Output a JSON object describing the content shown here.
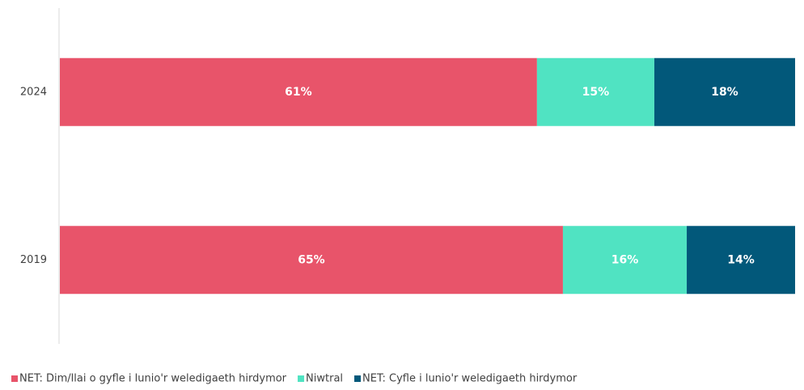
{
  "chart_data": {
    "type": "bar",
    "orientation": "horizontal",
    "stacking": "percent",
    "categories": [
      "2024",
      "2019"
    ],
    "series": [
      {
        "name": "NET: Dim/llai o gyfle i lunio'r weledigaeth hirdymor",
        "color": "#e8546a",
        "values": [
          61,
          65
        ],
        "value_labels": [
          "61%",
          "65%"
        ]
      },
      {
        "name": "Niwtral",
        "color": "#50e3c2",
        "values": [
          15,
          16
        ],
        "value_labels": [
          "15%",
          "16%"
        ]
      },
      {
        "name": "NET: Cyfle i lunio'r weledigaeth hirdymor",
        "color": "#02587a",
        "values": [
          18,
          14
        ],
        "value_labels": [
          "18%",
          "14%"
        ]
      }
    ],
    "legend": "bottom"
  }
}
